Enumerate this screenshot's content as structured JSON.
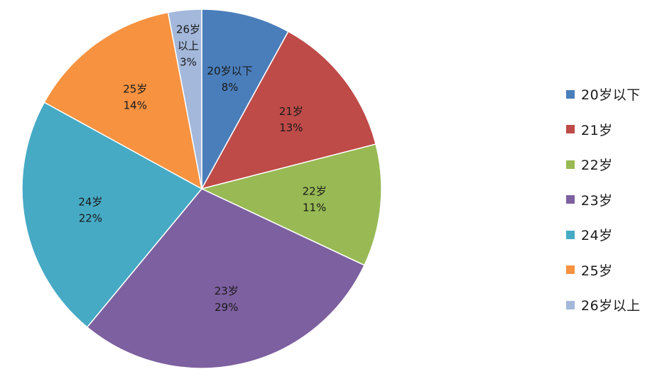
{
  "chart_data": {
    "type": "pie",
    "title": "",
    "categories": [
      "20岁以下",
      "21岁",
      "22岁",
      "23岁",
      "24岁",
      "25岁",
      "26岁以上"
    ],
    "values": [
      8,
      13,
      11,
      29,
      22,
      14,
      3
    ],
    "percent_labels": [
      "8%",
      "13%",
      "11%",
      "29%",
      "22%",
      "14%",
      "3%"
    ],
    "slice_labels": [
      [
        "20岁以下",
        "8%"
      ],
      [
        "21岁",
        "13%"
      ],
      [
        "22岁",
        "11%"
      ],
      [
        "23岁",
        "29%"
      ],
      [
        "24岁",
        "22%"
      ],
      [
        "25岁",
        "14%"
      ],
      [
        "26岁",
        "以上",
        "3%"
      ]
    ],
    "colors": [
      "#4a7ebb",
      "#be4b48",
      "#98b954",
      "#7d60a0",
      "#46aac5",
      "#f69240",
      "#a3b8db"
    ],
    "start": "12 o'clock",
    "direction": "clockwise",
    "legend": {
      "position": "right",
      "items": [
        "20岁以下",
        "21岁",
        "22岁",
        "23岁",
        "24岁",
        "25岁",
        "26岁以上"
      ]
    }
  }
}
